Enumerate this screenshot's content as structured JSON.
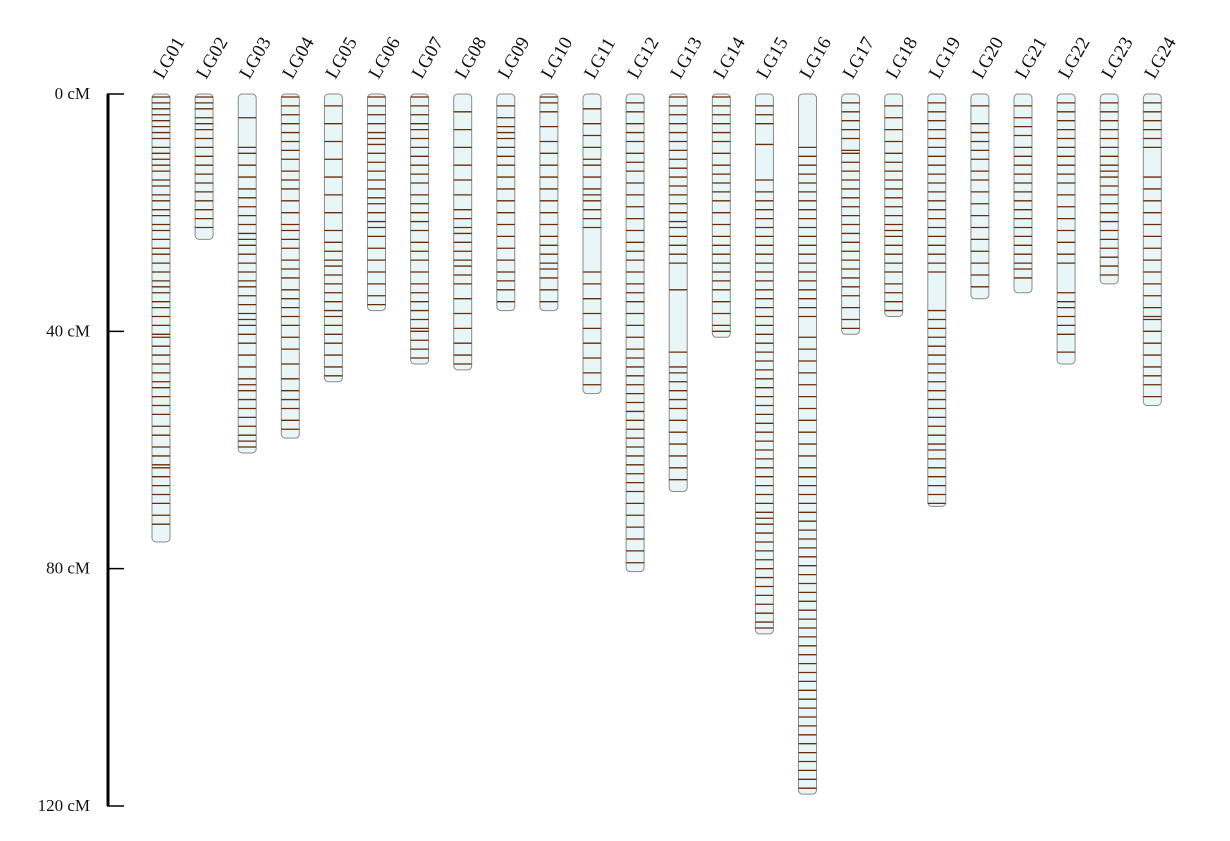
{
  "chart_data": {
    "type": "linkage_map",
    "title": "",
    "units": "cM",
    "y_axis": {
      "range": [
        0,
        120
      ],
      "ticks": [
        {
          "value": 0,
          "label": "0 cM"
        },
        {
          "value": 40,
          "label": "40 cM"
        },
        {
          "value": 80,
          "label": "80 cM"
        },
        {
          "value": 120,
          "label": "120 cM"
        }
      ]
    },
    "colors": {
      "chromosome_fill": "#e8f6f8",
      "chromosome_outline": "#8a8a8a",
      "marker": "#6b2b06",
      "axis": "#000000"
    },
    "linkage_groups": [
      {
        "name": "LG01",
        "length": 75.5,
        "markers": [
          0.5,
          1.5,
          2.5,
          3.5,
          4.5,
          5.5,
          6.5,
          7.5,
          9,
          10,
          11,
          12,
          13,
          14.5,
          15.5,
          17,
          18,
          19.5,
          20.5,
          22,
          23,
          24.5,
          26,
          27,
          28.5,
          30,
          31.5,
          32.5,
          33.5,
          35,
          36,
          37.5,
          39,
          40.5,
          41,
          42.5,
          44,
          45.5,
          47,
          48.5,
          49.5,
          51,
          52.5,
          54,
          56,
          57.5,
          59.5,
          61,
          62.5,
          63,
          64.5,
          66,
          67.5,
          69,
          71,
          72.5
        ]
      },
      {
        "name": "LG02",
        "length": 24.5,
        "markers": [
          0.5,
          1.5,
          2.5,
          4,
          5,
          6,
          7.5,
          9,
          10.5,
          12,
          13.5,
          15,
          16.5,
          18,
          19.5,
          21,
          22.5
        ]
      },
      {
        "name": "LG03",
        "length": 60.5,
        "markers": [
          4,
          9,
          10,
          12,
          14,
          16,
          17.5,
          19,
          20.5,
          22,
          23.5,
          24.5,
          25.5,
          27,
          28.5,
          30,
          31.5,
          32.5,
          34,
          35.5,
          37,
          38,
          39,
          40.5,
          42,
          44,
          46,
          48,
          49,
          50,
          51.5,
          53,
          54.5,
          56,
          57.5,
          58.5,
          59.5
        ]
      },
      {
        "name": "LG04",
        "length": 58,
        "markers": [
          0.5,
          2,
          3.5,
          5,
          6.5,
          8,
          9.5,
          11,
          13,
          14.5,
          16,
          18,
          20,
          22,
          23,
          24.5,
          26,
          28,
          29.5,
          31,
          33,
          34.5,
          36,
          37.5,
          39,
          41,
          43,
          45.5,
          48,
          50,
          51.5,
          53,
          55,
          56.5
        ]
      },
      {
        "name": "LG05",
        "length": 48.5,
        "markers": [
          2,
          5,
          8,
          11,
          14,
          17,
          20,
          23,
          25,
          26.5,
          28,
          29,
          30.5,
          32,
          33.5,
          35,
          36.5,
          37.5,
          39,
          40.5,
          42,
          44,
          46,
          47.5
        ]
      },
      {
        "name": "LG06",
        "length": 36.5,
        "markers": [
          0.5,
          2,
          3.5,
          5,
          6.5,
          7.5,
          8.5,
          10,
          11.5,
          13,
          14.5,
          16,
          17.5,
          18.5,
          20,
          21.5,
          22.5,
          24,
          26,
          28,
          30,
          32,
          34,
          35.5
        ]
      },
      {
        "name": "LG07",
        "length": 45.5,
        "markers": [
          0.5,
          2,
          3.5,
          5,
          6,
          7.5,
          9,
          10.5,
          12,
          13.5,
          15,
          17,
          18.5,
          20,
          21.5,
          23,
          25,
          26.5,
          28,
          30,
          32,
          33.5,
          35,
          36.5,
          38,
          39.5,
          40,
          41.5,
          43,
          44.5
        ]
      },
      {
        "name": "LG08",
        "length": 46.5,
        "markers": [
          3,
          6,
          9,
          12,
          14.5,
          17,
          19.5,
          21,
          22.5,
          23.5,
          25,
          26.5,
          28,
          29,
          30.5,
          32,
          34.5,
          37,
          39.5,
          42,
          44,
          45.5
        ]
      },
      {
        "name": "LG09",
        "length": 36.5,
        "markers": [
          2,
          4,
          5.5,
          6.5,
          7.5,
          9,
          10.5,
          12,
          14,
          16,
          18,
          20,
          22,
          24,
          26,
          28,
          30,
          31.5,
          33,
          35
        ]
      },
      {
        "name": "LG10",
        "length": 36.5,
        "markers": [
          0.5,
          1.5,
          3,
          5.5,
          8,
          10,
          12,
          14,
          16,
          18,
          20,
          22,
          24,
          25.5,
          27,
          28.5,
          29.5,
          31,
          33,
          35
        ]
      },
      {
        "name": "LG11",
        "length": 50.5,
        "markers": [
          2.5,
          5,
          7,
          9,
          11,
          12,
          14,
          16,
          17,
          18,
          19.5,
          21,
          22.5,
          30,
          32,
          34.5,
          37,
          39.5,
          42,
          44.5,
          47,
          49
        ]
      },
      {
        "name": "LG12",
        "length": 80.5,
        "markers": [
          1.5,
          3,
          5,
          6.5,
          8,
          10,
          11.5,
          13,
          15,
          17,
          19,
          21,
          23,
          25,
          26.5,
          28,
          30,
          32,
          33.5,
          35,
          37,
          39,
          41,
          43,
          44.5,
          46,
          47.5,
          49,
          50.5,
          52,
          53.5,
          55,
          56.5,
          58,
          59.5,
          61,
          62.5,
          64,
          65.5,
          67,
          69,
          71,
          73,
          75,
          77,
          79
        ]
      },
      {
        "name": "LG13",
        "length": 67,
        "markers": [
          0.5,
          2,
          3.5,
          5,
          6.5,
          8,
          9.5,
          11,
          12.5,
          14,
          15.5,
          17,
          18.5,
          20,
          21.5,
          22.5,
          24,
          25.5,
          27,
          28.5,
          33,
          43.5,
          46,
          47,
          48.5,
          50,
          51.5,
          53,
          55,
          57,
          59,
          61,
          63,
          65
        ]
      },
      {
        "name": "LG14",
        "length": 41,
        "markers": [
          0.5,
          2,
          3.5,
          5,
          6.5,
          8,
          10,
          12,
          13.5,
          15,
          16.5,
          18,
          20,
          22,
          24,
          25.5,
          27,
          28.5,
          30,
          31.5,
          33,
          35,
          37,
          39,
          40
        ]
      },
      {
        "name": "LG15",
        "length": 91,
        "markers": [
          2,
          3.5,
          5,
          8.5,
          14.5,
          16.5,
          18,
          19.5,
          21,
          22.5,
          24,
          25.5,
          27,
          28.5,
          30,
          31.5,
          33,
          34.5,
          36,
          37.5,
          39,
          40.5,
          42,
          43.5,
          45,
          46.5,
          48,
          49.5,
          51,
          52.5,
          54,
          55.5,
          57,
          58.5,
          60,
          61.5,
          63,
          64.5,
          66,
          67.5,
          69,
          70.5,
          71.5,
          72.5,
          74,
          75.5,
          77,
          78.5,
          80,
          81.5,
          83,
          84.5,
          86,
          87.5,
          89,
          90
        ]
      },
      {
        "name": "LG16",
        "length": 118,
        "markers": [
          9,
          10.5,
          12,
          13.5,
          15,
          16.5,
          18,
          19.5,
          21,
          22.5,
          24,
          25.5,
          27,
          28.5,
          30,
          31.5,
          33,
          34.5,
          36,
          37.5,
          41,
          43,
          45,
          47,
          49,
          51,
          53,
          55,
          57,
          59,
          61,
          63,
          64.5,
          66,
          67.5,
          69,
          70.5,
          72,
          73.5,
          75,
          76.5,
          78,
          79.5,
          81,
          82.5,
          84,
          85.5,
          87,
          88.5,
          90,
          91.5,
          93,
          94.5,
          96,
          97.5,
          99,
          100.5,
          102,
          103.5,
          105,
          106.5,
          108,
          109.5,
          111,
          112.5,
          114,
          115.5,
          117
        ]
      },
      {
        "name": "LG17",
        "length": 40.5,
        "markers": [
          1.5,
          3,
          4.5,
          6,
          7.5,
          9.5,
          10,
          11.5,
          13,
          14.5,
          16,
          17.5,
          19,
          20.5,
          22,
          23.5,
          25,
          26.5,
          28,
          29.5,
          31,
          32.5,
          34,
          36,
          38,
          39.5
        ]
      },
      {
        "name": "LG18",
        "length": 37.5,
        "markers": [
          2,
          4,
          6,
          8,
          10,
          11.5,
          13,
          14.5,
          16,
          17.5,
          19,
          20.5,
          22,
          23,
          24,
          25.5,
          27,
          28.5,
          30,
          32,
          33.5,
          35,
          36.5
        ]
      },
      {
        "name": "LG19",
        "length": 69.5,
        "markers": [
          1.5,
          3,
          4.5,
          6,
          7.5,
          9,
          10.5,
          12,
          13.5,
          15,
          16.5,
          18,
          19.5,
          21,
          22.5,
          24,
          25.5,
          27,
          28.5,
          30,
          36.5,
          38,
          39.5,
          41,
          42.5,
          44,
          45.5,
          47,
          48.5,
          50,
          51.5,
          53,
          54.5,
          56,
          57.5,
          59,
          60,
          61.5,
          63,
          64.5,
          66,
          67.5,
          69
        ]
      },
      {
        "name": "LG20",
        "length": 34.5,
        "markers": [
          2,
          5,
          6.5,
          8,
          9.5,
          11,
          13,
          14.5,
          16.5,
          18.5,
          20.5,
          22.5,
          24.5,
          26.5,
          28.5,
          30.5,
          32.5
        ]
      },
      {
        "name": "LG21",
        "length": 33.5,
        "markers": [
          2,
          4,
          5.5,
          7,
          9,
          10.5,
          12,
          13.5,
          15,
          16.5,
          18,
          19.5,
          21,
          22.5,
          24,
          25.5,
          27,
          28.5,
          29.5,
          31
        ]
      },
      {
        "name": "LG22",
        "length": 45.5,
        "markers": [
          1.5,
          3,
          4.5,
          6,
          7.5,
          9,
          10.5,
          12,
          13.5,
          15,
          17,
          19,
          21,
          23,
          25,
          27,
          28.5,
          33.5,
          35,
          36,
          37.5,
          39,
          40.5,
          43.5
        ]
      },
      {
        "name": "LG23",
        "length": 32,
        "markers": [
          1.5,
          3,
          4.5,
          6,
          7.5,
          9,
          10.5,
          12,
          13,
          14,
          15.5,
          17,
          18.5,
          20,
          21.5,
          23,
          24.5,
          26,
          27.5,
          29,
          30.5
        ]
      },
      {
        "name": "LG24",
        "length": 52.5,
        "markers": [
          1.5,
          3,
          4.5,
          6,
          7.5,
          9,
          14,
          16,
          18,
          20,
          22,
          24,
          26,
          28,
          30,
          32,
          34,
          36,
          37.5,
          38,
          40,
          42,
          44,
          46,
          47.5,
          49,
          51
        ]
      }
    ]
  }
}
